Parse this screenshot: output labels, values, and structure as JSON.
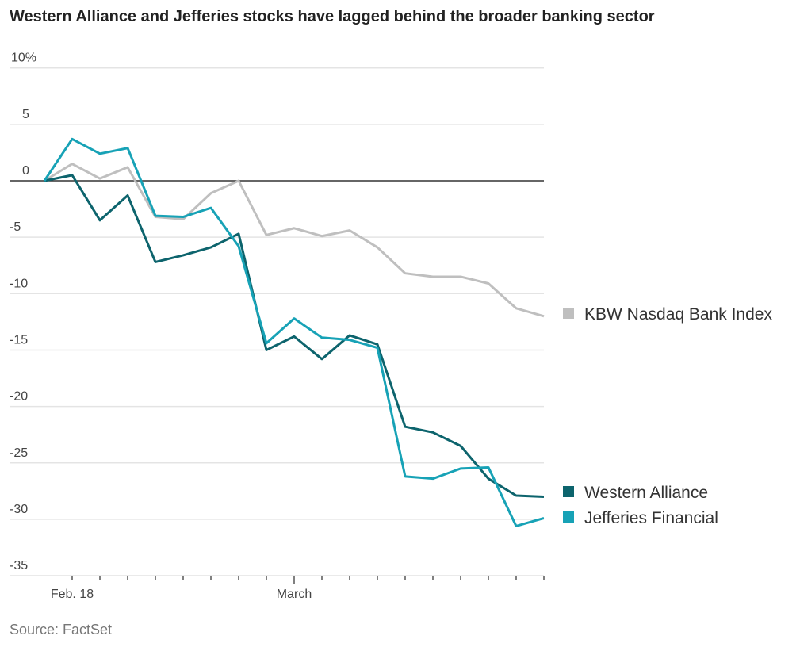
{
  "title": "Western Alliance and Jefferies stocks have lagged behind the broader banking sector",
  "source": "Source: FactSet",
  "chart_data": {
    "type": "line",
    "title": "Western Alliance and Jefferies stocks have lagged behind the broader banking sector",
    "xlabel": "",
    "ylabel": "",
    "ylim": [
      -35,
      10
    ],
    "yticks": [
      10,
      5,
      0,
      -5,
      -10,
      -15,
      -20,
      -25,
      -30,
      -35
    ],
    "ytick_labels": [
      "10%",
      "5",
      "0",
      "-5",
      "-10",
      "-15",
      "-20",
      "-25",
      "-30",
      "-35"
    ],
    "x_tick_labels": [
      {
        "index": 1,
        "label": "Feb. 18"
      },
      {
        "index": 9,
        "label": "March"
      }
    ],
    "grid": true,
    "legend_placement": "right, at line ends",
    "series": [
      {
        "name": "KBW Nasdaq Bank Index",
        "color": "#bfbfbf",
        "values": [
          0,
          1.5,
          0.2,
          1.2,
          -3.2,
          -3.4,
          -1.1,
          0,
          -4.8,
          -4.2,
          -4.9,
          -4.4,
          -5.9,
          -8.2,
          -8.5,
          -8.5,
          -9.1,
          -11.3,
          -12.0
        ]
      },
      {
        "name": "Western Alliance",
        "color": "#0d646d",
        "values": [
          0,
          0.5,
          -3.5,
          -1.3,
          -7.2,
          -6.6,
          -5.9,
          -4.7,
          -15.0,
          -13.8,
          -15.8,
          -13.7,
          -14.5,
          -21.8,
          -22.3,
          -23.5,
          -26.4,
          -27.9,
          -28.0
        ]
      },
      {
        "name": "Jefferies Financial",
        "color": "#17a2b6",
        "values": [
          0,
          3.7,
          2.4,
          2.9,
          -3.1,
          -3.2,
          -2.4,
          -5.8,
          -14.4,
          -12.2,
          -13.9,
          -14.1,
          -14.8,
          -26.2,
          -26.4,
          -25.5,
          -25.4,
          -30.6,
          -29.9
        ]
      }
    ]
  }
}
